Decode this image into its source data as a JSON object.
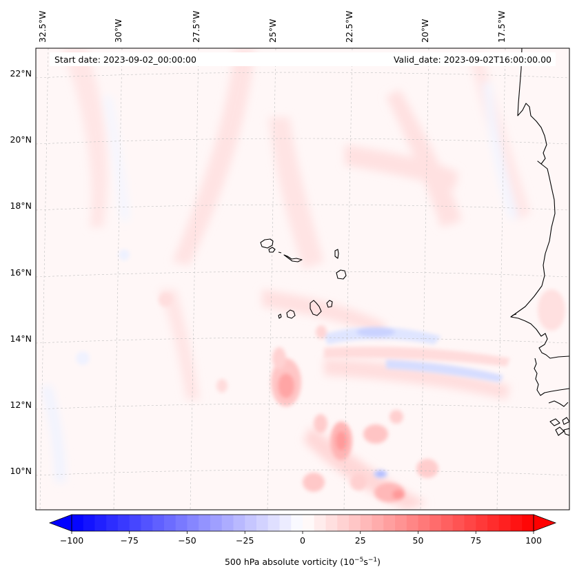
{
  "header": {
    "start_date": "Start date: 2023-09-02_00:00:00",
    "valid_date": "Valid_date: 2023-09-02T16:00:00.00"
  },
  "map": {
    "longitude_labels": [
      "32.5°W",
      "30°W",
      "27.5°W",
      "25°W",
      "22.5°W",
      "20°W",
      "17.5°W"
    ],
    "latitude_labels": [
      "22°N",
      "20°N",
      "18°N",
      "16°N",
      "14°N",
      "12°N",
      "10°N"
    ],
    "extent": {
      "lon_min": -32.6,
      "lon_max": -15.1,
      "lat_min": 8.9,
      "lat_max": 22.7
    },
    "gridlines": true
  },
  "colorbar": {
    "label": "500 hPa absolute vorticity (10",
    "label_exp1": "−5",
    "label_mid": "s",
    "label_exp2": "−1",
    "label_end": ")",
    "tick_labels": [
      "−100",
      "−75",
      "−50",
      "−25",
      "0",
      "25",
      "50",
      "75",
      "100"
    ],
    "ticks": [
      -100,
      -75,
      -50,
      -25,
      0,
      25,
      50,
      75,
      100
    ],
    "vmin": -100,
    "vmax": 100,
    "levels": 40,
    "colormap": "bwr",
    "extend": "both"
  },
  "colors": {
    "low": "#0000ff",
    "mid": "#ffffff",
    "high": "#ff0000",
    "coastline": "#000000"
  }
}
